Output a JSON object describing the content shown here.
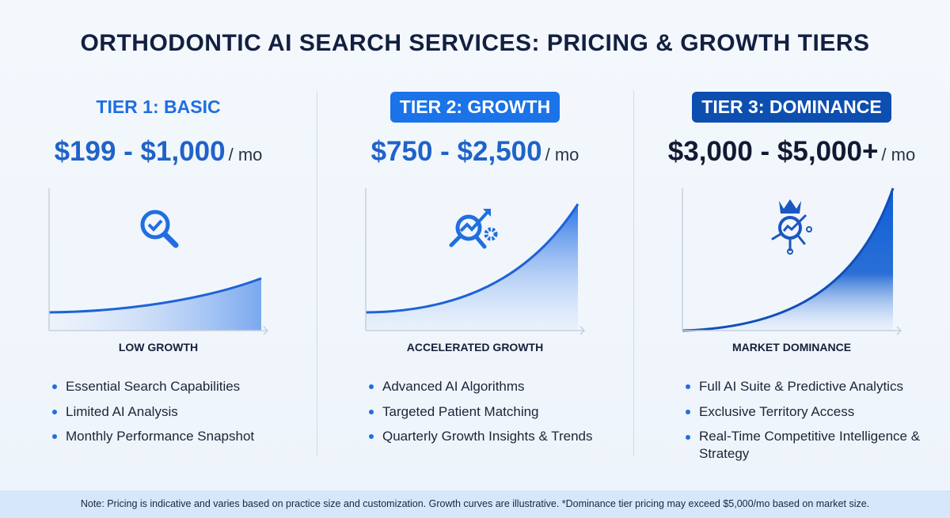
{
  "title": "ORTHODONTIC AI SEARCH SERVICES: PRICING & GROWTH TIERS",
  "colors": {
    "accent": "#1f6fe0",
    "tier2_badge": "#1a73e8",
    "tier3_badge": "#0d4fb0",
    "dark": "#121a33"
  },
  "tiers": [
    {
      "name": "TIER 1: BASIC",
      "price": "$199 - $1,000",
      "unit": "/ mo",
      "growth_label": "LOW GROWTH",
      "icon": "magnifier-check-icon",
      "features": [
        "Essential Search Capabilities",
        "Limited AI Analysis",
        "Monthly Performance Snapshot"
      ]
    },
    {
      "name": "TIER 2: GROWTH",
      "price": "$750 - $2,500",
      "unit": "/ mo",
      "growth_label": "ACCELERATED GROWTH",
      "icon": "magnifier-trend-gear-icon",
      "features": [
        "Advanced AI Algorithms",
        "Targeted Patient Matching",
        "Quarterly Growth Insights & Trends"
      ]
    },
    {
      "name": "TIER 3: DOMINANCE",
      "price": "$3,000 - $5,000+",
      "unit": "/ mo",
      "growth_label": "MARKET DOMINANCE",
      "icon": "crown-magnifier-network-icon",
      "features": [
        "Full AI Suite & Predictive Analytics",
        "Exclusive Territory Access",
        "Real-Time Competitive Intelligence & Strategy"
      ]
    }
  ],
  "footer": "Note: Pricing is indicative and varies based on practice size and customization. Growth curves are illustrative. *Dominance tier pricing may exceed $5,000/mo based on market size."
}
